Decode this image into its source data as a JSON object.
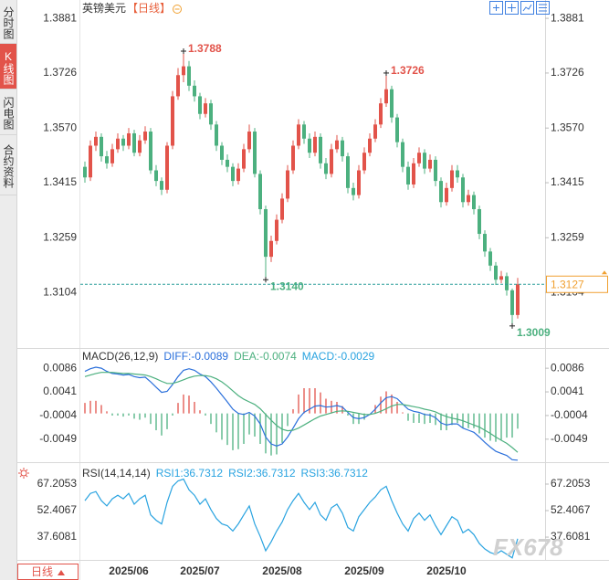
{
  "sidebar": {
    "tabs": [
      "分时图",
      "K线图",
      "闪电图",
      "合约资料"
    ]
  },
  "footer": {
    "period": "日线"
  },
  "watermark": "FX678",
  "chart_data": [
    {
      "type": "candlestick",
      "title": "英镑美元",
      "subtitle": "【日线】",
      "up_color": "#e2534a",
      "down_color": "#4cb07f",
      "categories": [
        null,
        null,
        null,
        null,
        null,
        null,
        null,
        null,
        "2025/06",
        null,
        null,
        null,
        null,
        null,
        null,
        null,
        null,
        null,
        null,
        null,
        null,
        "2025/07",
        null,
        null,
        null,
        null,
        null,
        null,
        null,
        null,
        null,
        null,
        null,
        null,
        null,
        null,
        "2025/08",
        null,
        null,
        null,
        null,
        null,
        null,
        null,
        null,
        null,
        null,
        null,
        null,
        null,
        null,
        "2025/09",
        null,
        null,
        null,
        null,
        null,
        null,
        null,
        null,
        null,
        null,
        null,
        null,
        null,
        null,
        "2025/10",
        null,
        null,
        null,
        null,
        null,
        null,
        null,
        null,
        null,
        null,
        null,
        null,
        null
      ],
      "open": [
        1.346,
        1.343,
        1.352,
        1.3545,
        1.349,
        1.347,
        1.351,
        1.354,
        1.352,
        1.3555,
        1.35,
        1.3535,
        1.356,
        1.345,
        1.342,
        1.3395,
        1.352,
        1.366,
        1.372,
        1.3745,
        1.369,
        1.366,
        1.361,
        1.364,
        1.358,
        1.352,
        1.348,
        1.346,
        1.342,
        1.3455,
        1.351,
        1.356,
        1.344,
        1.334,
        1.3205,
        1.325,
        1.331,
        1.337,
        1.345,
        1.352,
        1.358,
        1.354,
        1.35,
        1.3545,
        1.347,
        1.344,
        1.351,
        1.3535,
        1.349,
        1.34,
        1.338,
        1.345,
        1.35,
        1.354,
        1.358,
        1.364,
        1.368,
        1.36,
        1.353,
        1.346,
        1.341,
        1.347,
        1.35,
        1.3455,
        1.348,
        1.342,
        1.336,
        1.34,
        1.345,
        1.343,
        1.336,
        1.338,
        1.334,
        1.327,
        1.322,
        1.318,
        1.314,
        1.315,
        1.311,
        1.304
      ],
      "high": [
        1.3475,
        1.3535,
        1.356,
        1.3555,
        1.3505,
        1.3525,
        1.3555,
        1.355,
        1.357,
        1.3565,
        1.355,
        1.3575,
        1.357,
        1.3465,
        1.343,
        1.353,
        1.3675,
        1.374,
        1.3788,
        1.376,
        1.3705,
        1.367,
        1.3655,
        1.365,
        1.359,
        1.353,
        1.3495,
        1.347,
        1.347,
        1.3525,
        1.358,
        1.357,
        1.345,
        1.335,
        1.3265,
        1.3325,
        1.3385,
        1.3465,
        1.3535,
        1.3595,
        1.359,
        1.3555,
        1.356,
        1.3555,
        1.3485,
        1.3525,
        1.355,
        1.3545,
        1.35,
        1.3415,
        1.3465,
        1.3515,
        1.3555,
        1.3595,
        1.3655,
        1.3726,
        1.369,
        1.361,
        1.354,
        1.3475,
        1.3485,
        1.3515,
        1.351,
        1.3495,
        1.349,
        1.343,
        1.3415,
        1.3465,
        1.3465,
        1.344,
        1.3395,
        1.339,
        1.335,
        1.328,
        1.323,
        1.319,
        1.3165,
        1.316,
        1.3115,
        1.3145
      ],
      "low": [
        1.3415,
        1.342,
        1.3505,
        1.3475,
        1.3455,
        1.346,
        1.35,
        1.3505,
        1.351,
        1.349,
        1.349,
        1.3525,
        1.344,
        1.3405,
        1.338,
        1.3385,
        1.351,
        1.365,
        1.37,
        1.3675,
        1.3645,
        1.3595,
        1.36,
        1.3565,
        1.3505,
        1.3465,
        1.3445,
        1.3405,
        1.341,
        1.3445,
        1.35,
        1.343,
        1.3325,
        1.314,
        1.319,
        1.324,
        1.33,
        1.336,
        1.344,
        1.351,
        1.3525,
        1.3485,
        1.349,
        1.3455,
        1.3425,
        1.343,
        1.35,
        1.3475,
        1.3385,
        1.3365,
        1.337,
        1.344,
        1.349,
        1.353,
        1.357,
        1.363,
        1.3585,
        1.3515,
        1.3445,
        1.3395,
        1.34,
        1.346,
        1.344,
        1.3445,
        1.3405,
        1.3345,
        1.335,
        1.339,
        1.3415,
        1.3345,
        1.335,
        1.3325,
        1.3255,
        1.3205,
        1.3165,
        1.3125,
        1.313,
        1.3095,
        1.3009,
        1.303
      ],
      "close": [
        1.343,
        1.352,
        1.3545,
        1.349,
        1.347,
        1.351,
        1.354,
        1.352,
        1.3555,
        1.35,
        1.3535,
        1.356,
        1.345,
        1.342,
        1.3395,
        1.352,
        1.366,
        1.372,
        1.3745,
        1.369,
        1.366,
        1.361,
        1.364,
        1.358,
        1.352,
        1.348,
        1.346,
        1.342,
        1.3455,
        1.351,
        1.356,
        1.344,
        1.334,
        1.3205,
        1.325,
        1.331,
        1.337,
        1.345,
        1.352,
        1.358,
        1.354,
        1.35,
        1.3545,
        1.347,
        1.344,
        1.351,
        1.3535,
        1.349,
        1.34,
        1.338,
        1.345,
        1.35,
        1.354,
        1.358,
        1.364,
        1.368,
        1.36,
        1.353,
        1.346,
        1.341,
        1.347,
        1.35,
        1.3455,
        1.348,
        1.342,
        1.336,
        1.34,
        1.345,
        1.343,
        1.336,
        1.338,
        1.334,
        1.327,
        1.322,
        1.318,
        1.314,
        1.315,
        1.311,
        1.304,
        1.3127
      ],
      "ylim": [
        1.2949,
        1.3933
      ],
      "yticks": [
        1.3881,
        1.3726,
        {
          "value": 1.357,
          "label": "1.3570"
        },
        1.3415,
        1.3259,
        1.3104
      ],
      "annotations": [
        {
          "at": "high",
          "value": 1.3788,
          "label": "1.3788",
          "color": "#e2534a"
        },
        {
          "at": "high",
          "value": 1.3726,
          "label": "1.3726",
          "color": "#e2534a"
        },
        {
          "at": "low",
          "value": 1.314,
          "label": "1.3140",
          "color": "#4cb07f"
        },
        {
          "at": "low",
          "value": 1.3009,
          "label": "1.3009",
          "color": "#4cb07f"
        }
      ],
      "last_price": {
        "value": 1.3127,
        "label": "1.3127",
        "color": "#f0a030",
        "line_color": "#2a9d9a"
      }
    },
    {
      "type": "macd",
      "title": "MACD(26,12,9)",
      "ylim": [
        -0.0091,
        0.0121
      ],
      "yticks": [
        0.0086,
        0.0041,
        -0.0004,
        -0.0049
      ],
      "up_color": "#e2534a",
      "down_color": "#4cb07f",
      "series": [
        {
          "name": "DIFF:-0.0089",
          "kind": "line",
          "color": "#2a6fdb",
          "values": [
            0.008,
            0.0085,
            0.0088,
            0.0086,
            0.008,
            0.0076,
            0.0075,
            0.0073,
            0.0074,
            0.007,
            0.0068,
            0.0069,
            0.006,
            0.005,
            0.004,
            0.0042,
            0.0055,
            0.007,
            0.0082,
            0.0085,
            0.0082,
            0.0075,
            0.007,
            0.006,
            0.0048,
            0.0035,
            0.0022,
            0.0008,
            0,
            -0.0002,
            0.0002,
            -0.0005,
            -0.002,
            -0.0045,
            -0.0058,
            -0.0062,
            -0.0058,
            -0.0045,
            -0.0028,
            -0.001,
            0.0002,
            0.0008,
            0.0014,
            0.0015,
            0.0012,
            0.0013,
            0.0015,
            0.0012,
            0.0002,
            -0.0008,
            -0.001,
            -0.0008,
            -0.0002,
            0.0008,
            0.002,
            0.003,
            0.0032,
            0.0028,
            0.0018,
            0.0008,
            0.0004,
            0.0002,
            -0.0002,
            -0.0003,
            -0.0008,
            -0.0018,
            -0.0022,
            -0.002,
            -0.002,
            -0.0028,
            -0.0032,
            -0.0036,
            -0.0045,
            -0.0055,
            -0.0064,
            -0.0072,
            -0.0076,
            -0.008,
            -0.0088,
            -0.0089
          ]
        },
        {
          "name": "DEA:-0.0074",
          "kind": "line",
          "color": "#4cb07f",
          "values": [
            0.007,
            0.0073,
            0.0076,
            0.0078,
            0.0078,
            0.0078,
            0.0077,
            0.0076,
            0.0076,
            0.0075,
            0.0074,
            0.0073,
            0.007,
            0.0066,
            0.0061,
            0.0057,
            0.0057,
            0.006,
            0.0064,
            0.0068,
            0.0071,
            0.0072,
            0.0072,
            0.007,
            0.0066,
            0.006,
            0.0052,
            0.0043,
            0.0034,
            0.0027,
            0.0022,
            0.0017,
            0.0009,
            -0.0002,
            -0.0013,
            -0.0023,
            -0.003,
            -0.0033,
            -0.0032,
            -0.0028,
            -0.0022,
            -0.0016,
            -0.001,
            -0.0005,
            -0.0002,
            0.0001,
            0.0004,
            0.0005,
            0.0004,
            0.0002,
            0,
            -0.0002,
            -0.0002,
            0,
            0.0004,
            0.0009,
            0.0014,
            0.0017,
            0.0017,
            0.0015,
            0.0013,
            0.0011,
            0.0008,
            0.0006,
            0.0003,
            -0.0002,
            -0.0006,
            -0.0009,
            -0.0011,
            -0.0014,
            -0.0018,
            -0.0022,
            -0.0026,
            -0.0032,
            -0.0038,
            -0.0045,
            -0.0051,
            -0.0057,
            -0.0065,
            -0.0074
          ]
        },
        {
          "name": "MACD:-0.0029",
          "kind": "histogram",
          "color": "#29a3e0",
          "values": [
            0.002,
            0.0024,
            0.0024,
            0.0016,
            0.0004,
            -0.0004,
            -0.0004,
            -0.0006,
            -0.0004,
            -0.001,
            -0.0012,
            -0.0008,
            -0.002,
            -0.0032,
            -0.0042,
            -0.003,
            -0.0004,
            0.002,
            0.0036,
            0.0034,
            0.0022,
            0.0006,
            -0.0004,
            -0.002,
            -0.0036,
            -0.005,
            -0.006,
            -0.007,
            -0.0068,
            -0.0058,
            -0.004,
            -0.0044,
            -0.0058,
            -0.0076,
            -0.008,
            -0.0078,
            -0.0056,
            -0.0024,
            0.0008,
            0.0036,
            0.0048,
            0.0048,
            0.0048,
            0.004,
            0.0028,
            0.0024,
            0.0022,
            0.0014,
            -0.0004,
            -0.002,
            -0.002,
            -0.0012,
            0,
            0.0016,
            0.0032,
            0.0042,
            0.0036,
            0.0022,
            0.0002,
            -0.0014,
            -0.0018,
            -0.0018,
            -0.002,
            -0.0018,
            -0.0022,
            -0.0032,
            -0.0032,
            -0.0022,
            -0.0018,
            -0.0028,
            -0.0028,
            -0.0028,
            -0.0038,
            -0.0046,
            -0.0052,
            -0.0054,
            -0.005,
            -0.0046,
            -0.0046,
            -0.0029
          ]
        }
      ]
    },
    {
      "type": "rsi",
      "title": "RSI(14,14,14)",
      "ylim": [
        25.4,
        77.4
      ],
      "yticks": [
        67.2053,
        52.4067,
        37.6081
      ],
      "series": [
        {
          "name": "RSI1:36.7312",
          "kind": "line",
          "color": "#29a3e0",
          "values": [
            58,
            62,
            63,
            58,
            55,
            59,
            61,
            59,
            62,
            56,
            59,
            61,
            50,
            47,
            45,
            57,
            66,
            69,
            70,
            64,
            61,
            56,
            59,
            53,
            48,
            45,
            44,
            41,
            45,
            50,
            55,
            45,
            38,
            30,
            35,
            41,
            46,
            53,
            58,
            62,
            57,
            53,
            57,
            50,
            47,
            54,
            56,
            51,
            43,
            41,
            49,
            53,
            57,
            60,
            64,
            66,
            58,
            51,
            45,
            41,
            48,
            51,
            47,
            50,
            44,
            39,
            44,
            49,
            47,
            40,
            42,
            39,
            34,
            31,
            29,
            28,
            30,
            28,
            26,
            36.7312
          ]
        }
      ],
      "extra_legend": [
        {
          "name": "RSI2:36.7312",
          "color": "#29a3e0"
        },
        {
          "name": "RSI3:36.7312",
          "color": "#29a3e0"
        }
      ]
    }
  ]
}
